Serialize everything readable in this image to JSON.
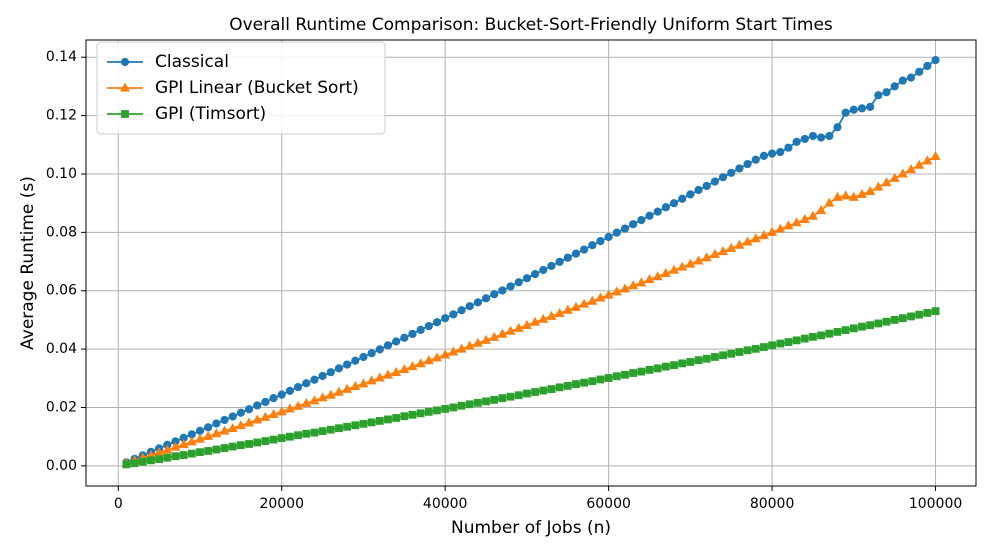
{
  "chart_data": {
    "type": "line",
    "title": "Overall Runtime Comparison: Bucket-Sort-Friendly Uniform Start Times",
    "x_label": "Number of Jobs (n)",
    "y_label": "Average Runtime (s)",
    "x": [
      1000,
      2000,
      3000,
      4000,
      5000,
      6000,
      7000,
      8000,
      9000,
      10000,
      11000,
      12000,
      13000,
      14000,
      15000,
      16000,
      17000,
      18000,
      19000,
      20000,
      21000,
      22000,
      23000,
      24000,
      25000,
      26000,
      27000,
      28000,
      29000,
      30000,
      31000,
      32000,
      33000,
      34000,
      35000,
      36000,
      37000,
      38000,
      39000,
      40000,
      41000,
      42000,
      43000,
      44000,
      45000,
      46000,
      47000,
      48000,
      49000,
      50000,
      51000,
      52000,
      53000,
      54000,
      55000,
      56000,
      57000,
      58000,
      59000,
      60000,
      61000,
      62000,
      63000,
      64000,
      65000,
      66000,
      67000,
      68000,
      69000,
      70000,
      71000,
      72000,
      73000,
      74000,
      75000,
      76000,
      77000,
      78000,
      79000,
      80000,
      81000,
      82000,
      83000,
      84000,
      85000,
      86000,
      87000,
      88000,
      89000,
      90000,
      91000,
      92000,
      93000,
      94000,
      95000,
      96000,
      97000,
      98000,
      99000,
      100000
    ],
    "series": [
      {
        "name": "Classical",
        "color": "#1f77b4",
        "marker": "circle",
        "values": [
          0.0012,
          0.0024,
          0.0036,
          0.0048,
          0.006,
          0.0072,
          0.0084,
          0.0096,
          0.0108,
          0.012,
          0.0132,
          0.0145,
          0.0157,
          0.0169,
          0.0182,
          0.0194,
          0.0207,
          0.0219,
          0.0232,
          0.0244,
          0.0257,
          0.027,
          0.0283,
          0.0295,
          0.0308,
          0.0321,
          0.0334,
          0.0347,
          0.036,
          0.0373,
          0.0386,
          0.0399,
          0.0413,
          0.0426,
          0.0439,
          0.0452,
          0.0466,
          0.0479,
          0.0492,
          0.0506,
          0.0519,
          0.0533,
          0.0547,
          0.056,
          0.0574,
          0.0588,
          0.0601,
          0.0615,
          0.0629,
          0.0643,
          0.0657,
          0.0671,
          0.0685,
          0.0699,
          0.0713,
          0.0727,
          0.0741,
          0.0756,
          0.077,
          0.0784,
          0.0799,
          0.0813,
          0.0828,
          0.0842,
          0.0857,
          0.0871,
          0.0886,
          0.09,
          0.0915,
          0.093,
          0.0945,
          0.0959,
          0.0974,
          0.0989,
          0.1004,
          0.1019,
          0.1034,
          0.1049,
          0.1062,
          0.107,
          0.1075,
          0.109,
          0.111,
          0.112,
          0.113,
          0.1125,
          0.113,
          0.116,
          0.121,
          0.122,
          0.1225,
          0.123,
          0.127,
          0.128,
          0.13,
          0.132,
          0.133,
          0.135,
          0.137,
          0.139
        ]
      },
      {
        "name": "GPI Linear (Bucket Sort)",
        "color": "#ff7f0e",
        "marker": "triangle",
        "values": [
          0.0009,
          0.0018,
          0.0027,
          0.0036,
          0.0045,
          0.0054,
          0.0064,
          0.0073,
          0.0082,
          0.0091,
          0.0101,
          0.011,
          0.0119,
          0.0128,
          0.0138,
          0.0147,
          0.0157,
          0.0166,
          0.0176,
          0.0185,
          0.0195,
          0.0204,
          0.0214,
          0.0223,
          0.0233,
          0.0242,
          0.0252,
          0.0262,
          0.0272,
          0.0281,
          0.0291,
          0.0301,
          0.0311,
          0.032,
          0.033,
          0.034,
          0.035,
          0.036,
          0.037,
          0.038,
          0.039,
          0.04,
          0.041,
          0.042,
          0.043,
          0.044,
          0.0451,
          0.0461,
          0.0471,
          0.0481,
          0.0492,
          0.0502,
          0.0512,
          0.0522,
          0.0533,
          0.0543,
          0.0554,
          0.0564,
          0.0575,
          0.0585,
          0.0596,
          0.0606,
          0.0617,
          0.0627,
          0.0638,
          0.0648,
          0.0659,
          0.067,
          0.0681,
          0.0691,
          0.0702,
          0.0713,
          0.0724,
          0.0734,
          0.0745,
          0.0756,
          0.0767,
          0.0778,
          0.0789,
          0.08,
          0.0811,
          0.0822,
          0.0833,
          0.0844,
          0.0855,
          0.0875,
          0.09,
          0.092,
          0.0925,
          0.092,
          0.093,
          0.094,
          0.0955,
          0.097,
          0.0985,
          0.1,
          0.1015,
          0.103,
          0.1045,
          0.106
        ]
      },
      {
        "name": "GPI (Timsort)",
        "color": "#2ca02c",
        "marker": "square",
        "values": [
          0.0005,
          0.0009,
          0.0014,
          0.0019,
          0.0023,
          0.0028,
          0.0033,
          0.0037,
          0.0042,
          0.0047,
          0.0051,
          0.0056,
          0.0061,
          0.0066,
          0.0071,
          0.0075,
          0.008,
          0.0085,
          0.009,
          0.0095,
          0.01,
          0.0105,
          0.011,
          0.0114,
          0.0119,
          0.0124,
          0.0129,
          0.0134,
          0.0139,
          0.0144,
          0.0149,
          0.0154,
          0.0159,
          0.0164,
          0.017,
          0.0175,
          0.018,
          0.0185,
          0.019,
          0.0195,
          0.02,
          0.0206,
          0.0211,
          0.0216,
          0.0221,
          0.0226,
          0.0232,
          0.0237,
          0.0242,
          0.0248,
          0.0253,
          0.0258,
          0.0263,
          0.0269,
          0.0274,
          0.028,
          0.0285,
          0.029,
          0.0296,
          0.0301,
          0.0307,
          0.0312,
          0.0318,
          0.0323,
          0.0329,
          0.0334,
          0.034,
          0.0345,
          0.0351,
          0.0356,
          0.0362,
          0.0367,
          0.0373,
          0.0379,
          0.0384,
          0.039,
          0.0396,
          0.0401,
          0.0407,
          0.0413,
          0.0419,
          0.0424,
          0.043,
          0.0436,
          0.0442,
          0.0447,
          0.0453,
          0.0459,
          0.0465,
          0.0471,
          0.0477,
          0.0482,
          0.0488,
          0.0494,
          0.05,
          0.0506,
          0.0512,
          0.0518,
          0.0524,
          0.053
        ]
      }
    ],
    "xlim": [
      -3950,
      104950
    ],
    "ylim": [
      -0.0069,
      0.1459
    ],
    "xticks": [
      0,
      20000,
      40000,
      60000,
      80000,
      100000
    ],
    "yticks": [
      {
        "value": 0,
        "label": "0.00"
      },
      {
        "value": 0.02,
        "label": "0.02"
      },
      {
        "value": 0.04,
        "label": "0.04"
      },
      {
        "value": 0.06,
        "label": "0.06"
      },
      {
        "value": 0.08,
        "label": "0.08"
      },
      {
        "value": 0.1,
        "label": "0.10"
      },
      {
        "value": 0.12,
        "label": "0.12"
      },
      {
        "value": 0.14,
        "label": "0.14"
      }
    ],
    "grid": true,
    "legend": "upper-left"
  }
}
